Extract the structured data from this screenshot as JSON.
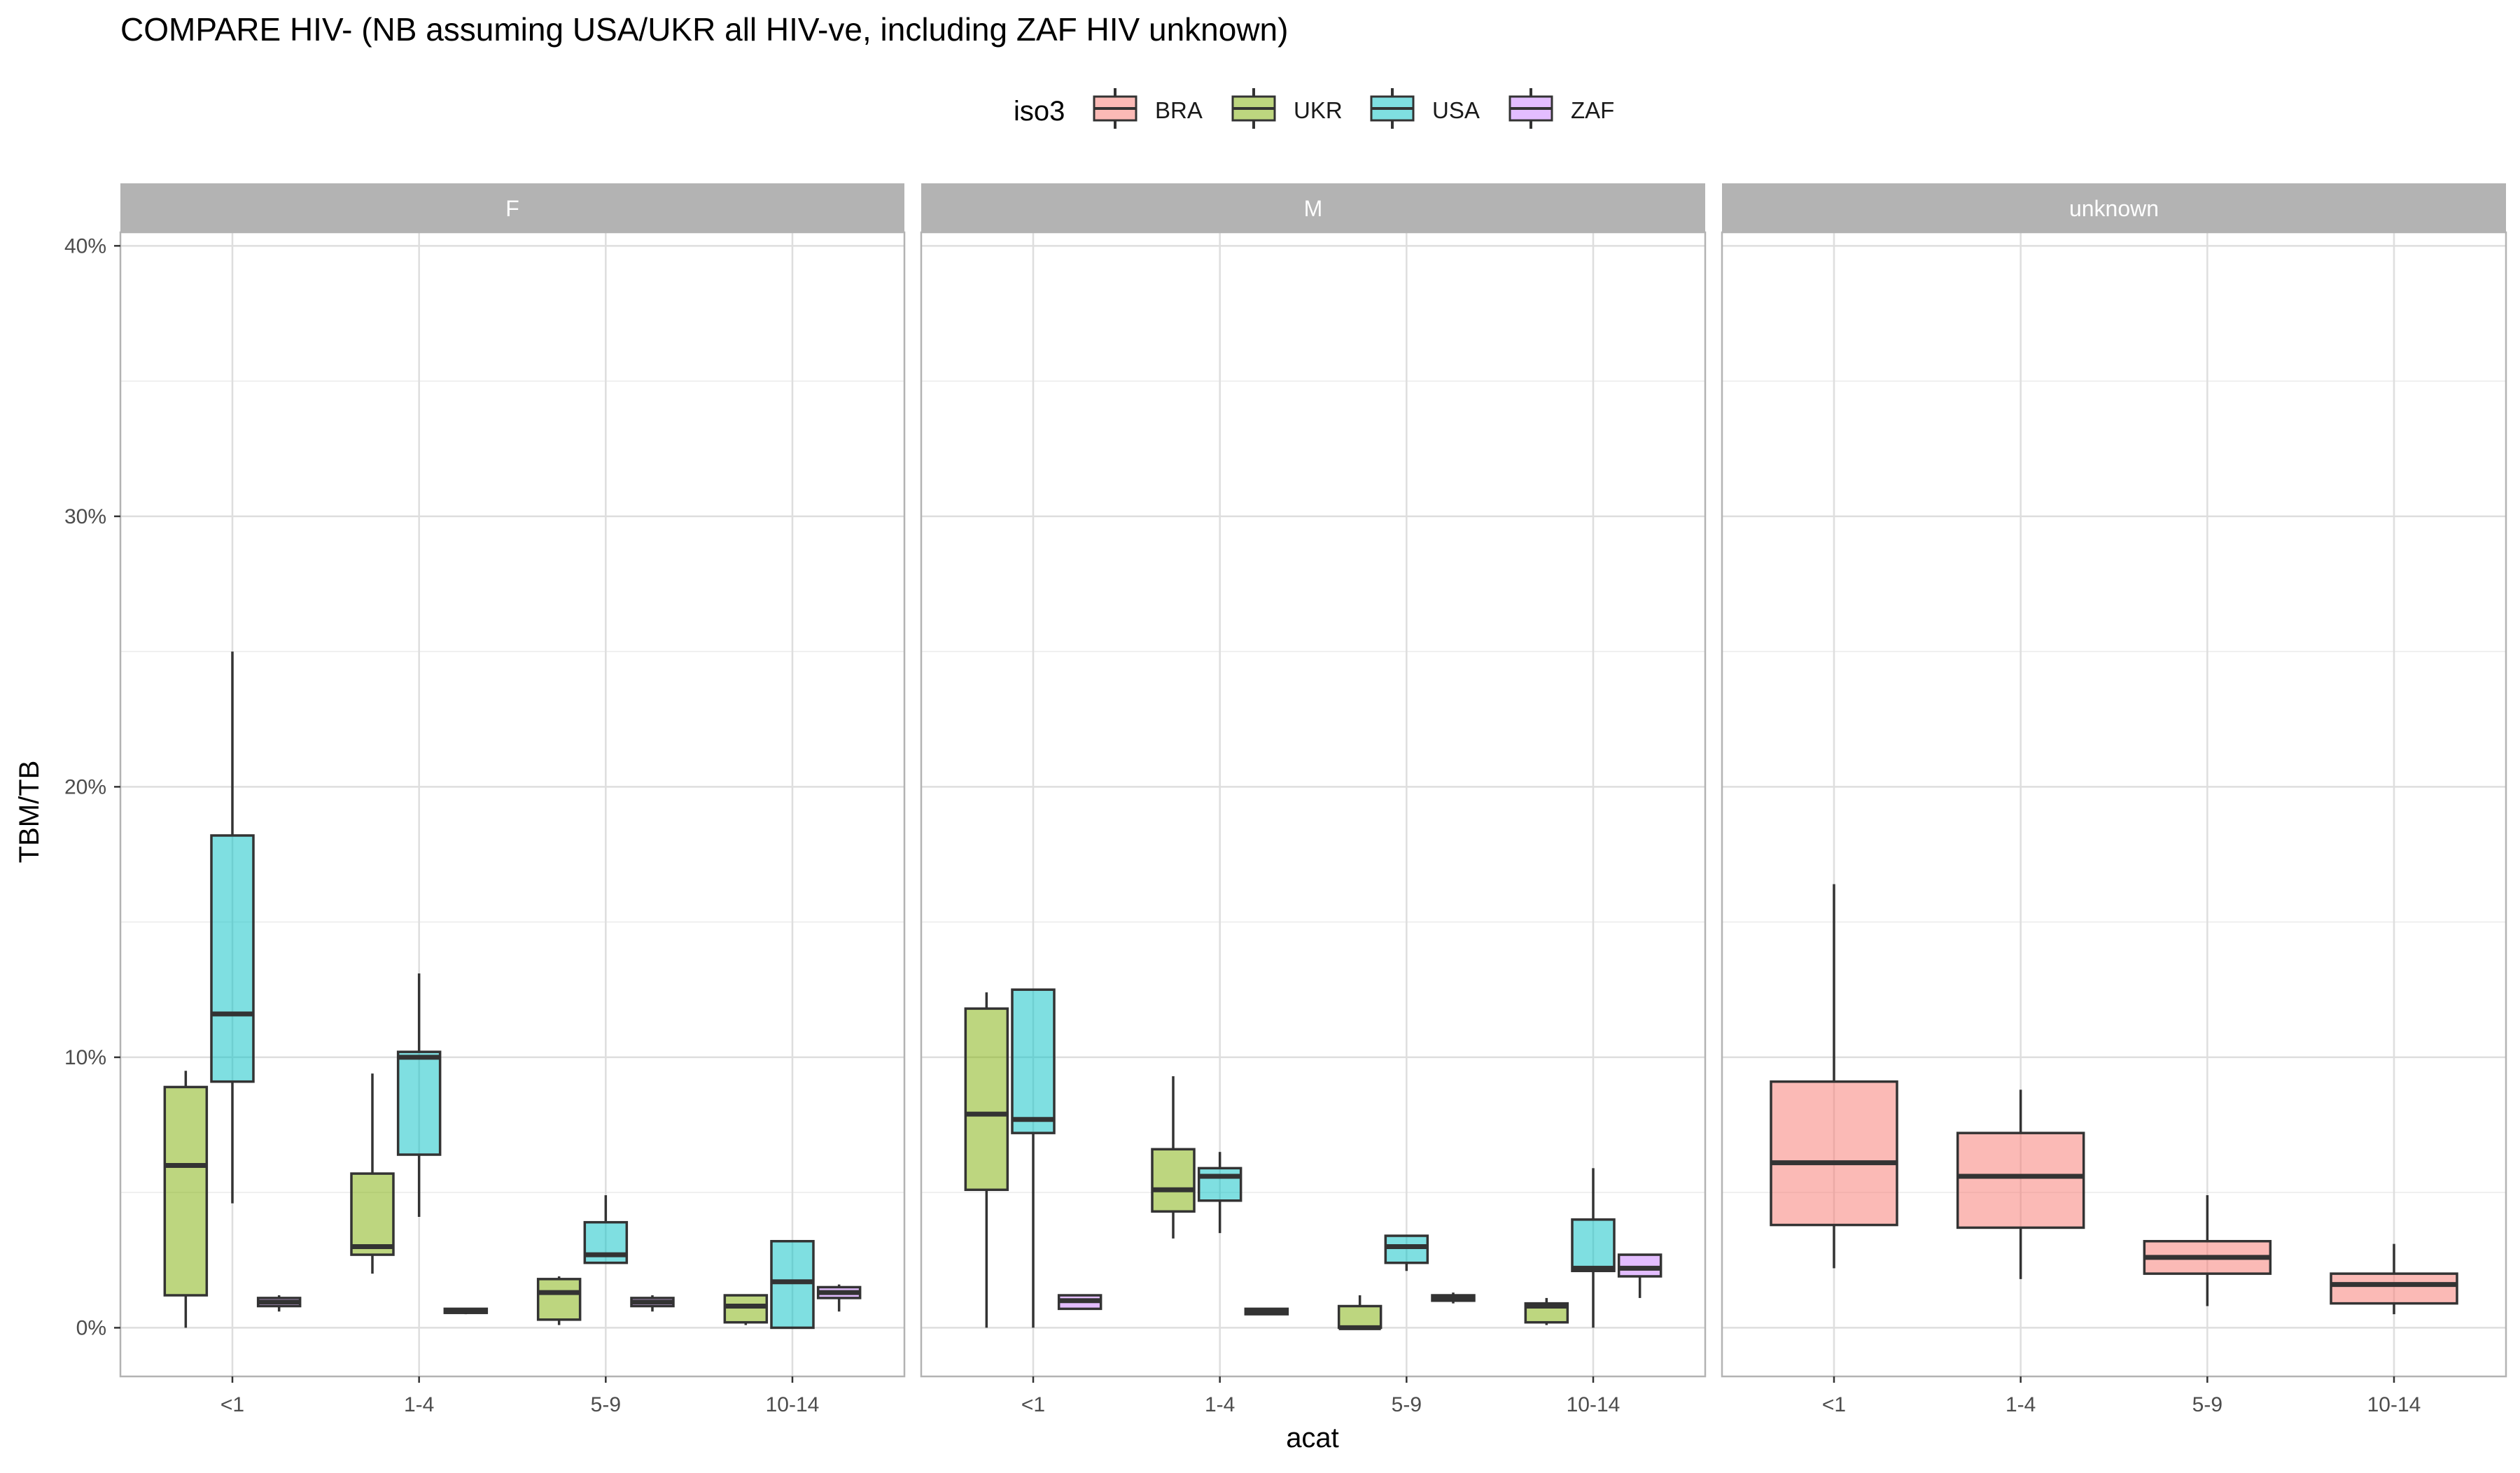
{
  "chart_data": {
    "type": "boxplot",
    "title": "COMPARE HIV- (NB assuming USA/UKR all HIV-ve, including ZAF HIV unknown)",
    "xlabel": "acat",
    "ylabel": "TBM/TB",
    "ylim": [
      -0.018,
      0.405
    ],
    "y_ticks": [
      0,
      0.1,
      0.2,
      0.3,
      0.4
    ],
    "y_tick_labels": [
      "0%",
      "10%",
      "20%",
      "30%",
      "40%"
    ],
    "categories": [
      "<1",
      "1-4",
      "5-9",
      "10-14"
    ],
    "legend": {
      "title": "iso3",
      "position": "top",
      "entries": [
        {
          "name": "BRA",
          "color": "#F8766D"
        },
        {
          "name": "UKR",
          "color": "#7CAE00"
        },
        {
          "name": "USA",
          "color": "#00BFC4"
        },
        {
          "name": "ZAF",
          "color": "#C77CFF"
        }
      ]
    },
    "fill_opacity": 0.5,
    "grid": true,
    "iso3_order": [
      "BRA",
      "UKR",
      "USA",
      "ZAF"
    ],
    "panels": [
      {
        "label": "F",
        "groups": [
          "UKR",
          "USA",
          "ZAF"
        ],
        "boxes": [
          {
            "category": "<1",
            "iso3": "UKR",
            "min": 0.0,
            "q1": 0.012,
            "median": 0.06,
            "q3": 0.089,
            "max": 0.095
          },
          {
            "category": "<1",
            "iso3": "USA",
            "min": 0.046,
            "q1": 0.091,
            "median": 0.116,
            "q3": 0.182,
            "max": 0.25
          },
          {
            "category": "<1",
            "iso3": "ZAF",
            "min": 0.006,
            "q1": 0.008,
            "median": 0.0095,
            "q3": 0.011,
            "max": 0.012
          },
          {
            "category": "1-4",
            "iso3": "UKR",
            "min": 0.02,
            "q1": 0.027,
            "median": 0.03,
            "q3": 0.057,
            "max": 0.094
          },
          {
            "category": "1-4",
            "iso3": "USA",
            "min": 0.041,
            "q1": 0.064,
            "median": 0.1,
            "q3": 0.102,
            "max": 0.131
          },
          {
            "category": "1-4",
            "iso3": "ZAF",
            "min": 0.005,
            "q1": 0.0055,
            "median": 0.006,
            "q3": 0.007,
            "max": 0.007
          },
          {
            "category": "5-9",
            "iso3": "UKR",
            "min": 0.001,
            "q1": 0.003,
            "median": 0.013,
            "q3": 0.018,
            "max": 0.019
          },
          {
            "category": "5-9",
            "iso3": "USA",
            "min": 0.024,
            "q1": 0.024,
            "median": 0.027,
            "q3": 0.039,
            "max": 0.049
          },
          {
            "category": "5-9",
            "iso3": "ZAF",
            "min": 0.006,
            "q1": 0.008,
            "median": 0.0095,
            "q3": 0.011,
            "max": 0.012
          },
          {
            "category": "10-14",
            "iso3": "UKR",
            "min": 0.001,
            "q1": 0.002,
            "median": 0.008,
            "q3": 0.012,
            "max": 0.012
          },
          {
            "category": "10-14",
            "iso3": "USA",
            "min": 0.0,
            "q1": 0.0,
            "median": 0.017,
            "q3": 0.032,
            "max": 0.032
          },
          {
            "category": "10-14",
            "iso3": "ZAF",
            "min": 0.006,
            "q1": 0.011,
            "median": 0.013,
            "q3": 0.015,
            "max": 0.016
          }
        ]
      },
      {
        "label": "M",
        "groups": [
          "UKR",
          "USA",
          "ZAF"
        ],
        "boxes": [
          {
            "category": "<1",
            "iso3": "UKR",
            "min": 0.0,
            "q1": 0.051,
            "median": 0.079,
            "q3": 0.118,
            "max": 0.124
          },
          {
            "category": "<1",
            "iso3": "USA",
            "min": 0.0,
            "q1": 0.072,
            "median": 0.077,
            "q3": 0.125,
            "max": 0.125
          },
          {
            "category": "<1",
            "iso3": "ZAF",
            "min": 0.007,
            "q1": 0.007,
            "median": 0.01,
            "q3": 0.012,
            "max": 0.012
          },
          {
            "category": "1-4",
            "iso3": "UKR",
            "min": 0.033,
            "q1": 0.043,
            "median": 0.051,
            "q3": 0.066,
            "max": 0.093
          },
          {
            "category": "1-4",
            "iso3": "USA",
            "min": 0.035,
            "q1": 0.047,
            "median": 0.056,
            "q3": 0.059,
            "max": 0.065
          },
          {
            "category": "1-4",
            "iso3": "ZAF",
            "min": 0.005,
            "q1": 0.005,
            "median": 0.006,
            "q3": 0.007,
            "max": 0.007
          },
          {
            "category": "5-9",
            "iso3": "UKR",
            "min": 0.0,
            "q1": 0.0,
            "median": 0.0,
            "q3": 0.008,
            "max": 0.012
          },
          {
            "category": "5-9",
            "iso3": "USA",
            "min": 0.021,
            "q1": 0.024,
            "median": 0.03,
            "q3": 0.034,
            "max": 0.034
          },
          {
            "category": "5-9",
            "iso3": "ZAF",
            "min": 0.009,
            "q1": 0.01,
            "median": 0.011,
            "q3": 0.012,
            "max": 0.013
          },
          {
            "category": "10-14",
            "iso3": "UKR",
            "min": 0.001,
            "q1": 0.002,
            "median": 0.008,
            "q3": 0.009,
            "max": 0.011
          },
          {
            "category": "10-14",
            "iso3": "USA",
            "min": 0.0,
            "q1": 0.021,
            "median": 0.022,
            "q3": 0.04,
            "max": 0.059
          },
          {
            "category": "10-14",
            "iso3": "ZAF",
            "min": 0.011,
            "q1": 0.019,
            "median": 0.022,
            "q3": 0.027,
            "max": 0.027
          }
        ]
      },
      {
        "label": "unknown",
        "groups": [
          "BRA"
        ],
        "boxes": [
          {
            "category": "<1",
            "iso3": "BRA",
            "min": 0.022,
            "q1": 0.038,
            "median": 0.061,
            "q3": 0.091,
            "max": 0.164
          },
          {
            "category": "1-4",
            "iso3": "BRA",
            "min": 0.018,
            "q1": 0.037,
            "median": 0.056,
            "q3": 0.072,
            "max": 0.088
          },
          {
            "category": "5-9",
            "iso3": "BRA",
            "min": 0.008,
            "q1": 0.02,
            "median": 0.026,
            "q3": 0.032,
            "max": 0.049
          },
          {
            "category": "10-14",
            "iso3": "BRA",
            "min": 0.005,
            "q1": 0.009,
            "median": 0.016,
            "q3": 0.02,
            "max": 0.031
          }
        ]
      }
    ]
  }
}
